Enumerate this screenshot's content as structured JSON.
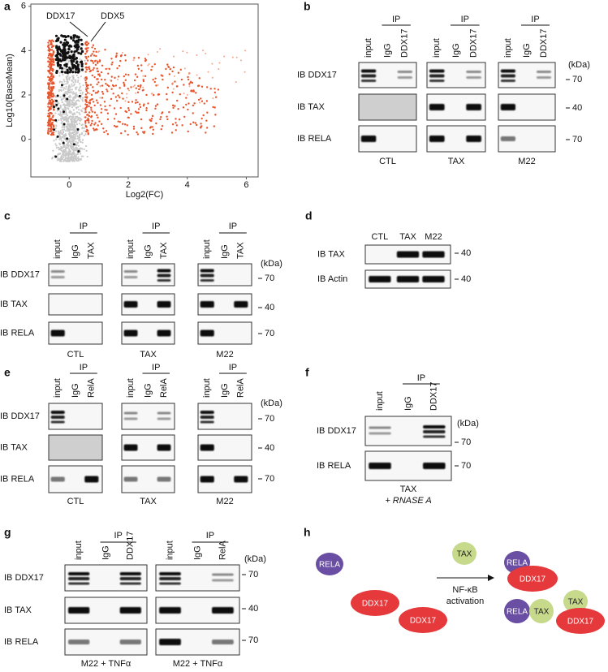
{
  "panels": {
    "a": {
      "letter": "a",
      "chart_data": {
        "type": "scatter",
        "x_label": "Log2(FC)",
        "y_label": "Log10(BaseMean)",
        "xlim": [
          -1.3,
          6.4
        ],
        "ylim": [
          -1.7,
          6.1
        ],
        "xticks": [
          0,
          2,
          4,
          6
        ],
        "yticks": [
          0,
          2,
          4,
          6
        ],
        "annotations": [
          "DDX17",
          "DDX5"
        ]
      }
    },
    "b": {
      "letter": "b",
      "ip": "IP",
      "rows": [
        "IB DDX17",
        "IB TAX",
        "IB RELA"
      ],
      "unit": "(kDa)",
      "markers": [
        70,
        40,
        70
      ],
      "groups": [
        {
          "lanes": [
            "input",
            "IgG",
            "DDX17"
          ],
          "condition": "CTL"
        },
        {
          "lanes": [
            "input",
            "IgG",
            "DDX17"
          ],
          "condition": "TAX"
        },
        {
          "lanes": [
            "input",
            "IgG",
            "DDX17"
          ],
          "condition": "M22"
        }
      ]
    },
    "c": {
      "letter": "c",
      "ip": "IP",
      "rows": [
        "IB DDX17",
        "IB TAX",
        "IB RELA"
      ],
      "unit": "(kDa)",
      "markers": [
        70,
        40,
        70
      ],
      "groups": [
        {
          "lanes": [
            "input",
            "IgG",
            "TAX"
          ],
          "condition": "CTL"
        },
        {
          "lanes": [
            "input",
            "IgG",
            "TAX"
          ],
          "condition": "TAX"
        },
        {
          "lanes": [
            "input",
            "IgG",
            "TAX"
          ],
          "condition": "M22"
        }
      ]
    },
    "d": {
      "letter": "d",
      "rows": [
        "IB TAX",
        "IB Actin"
      ],
      "markers": [
        40,
        40
      ],
      "groups": [
        {
          "lanes": [
            "CTL",
            "TAX",
            "M22"
          ]
        }
      ]
    },
    "e": {
      "letter": "e",
      "ip": "IP",
      "rows": [
        "IB DDX17",
        "IB TAX",
        "IB RELA"
      ],
      "unit": "(kDa)",
      "markers": [
        70,
        40,
        70
      ],
      "groups": [
        {
          "lanes": [
            "input",
            "IgG",
            "RelA"
          ],
          "condition": "CTL"
        },
        {
          "lanes": [
            "input",
            "IgG",
            "RelA"
          ],
          "condition": "TAX"
        },
        {
          "lanes": [
            "input",
            "IgG",
            "RelA"
          ],
          "condition": "M22"
        }
      ]
    },
    "f": {
      "letter": "f",
      "ip": "IP",
      "rows": [
        "IB DDX17",
        "IB RELA"
      ],
      "unit": "(kDa)",
      "markers": [
        70,
        70
      ],
      "groups": [
        {
          "lanes": [
            "input",
            "IgG",
            "DDX17"
          ],
          "condition": "TAX"
        }
      ],
      "treatment": "+ RNASE A"
    },
    "g": {
      "letter": "g",
      "ip": "IP",
      "rows": [
        "IB DDX17",
        "IB TAX",
        "IB RELA"
      ],
      "unit": "(kDa)",
      "markers": [
        70,
        40,
        70
      ],
      "groups": [
        {
          "lanes": [
            "input",
            "IgG",
            "DDX17"
          ],
          "condition": "M22 + TNFα"
        },
        {
          "lanes": [
            "input",
            "IgG",
            "RelA"
          ],
          "condition": "M22 + TNFα"
        }
      ]
    },
    "h": {
      "letter": "h",
      "nodes": [
        "RELA",
        "DDX17",
        "DDX17",
        "TAX",
        "RELA",
        "DDX17",
        "RELA",
        "TAX",
        "TAX",
        "DDX17"
      ],
      "arrow": [
        "NF-κB",
        "activation"
      ]
    }
  }
}
